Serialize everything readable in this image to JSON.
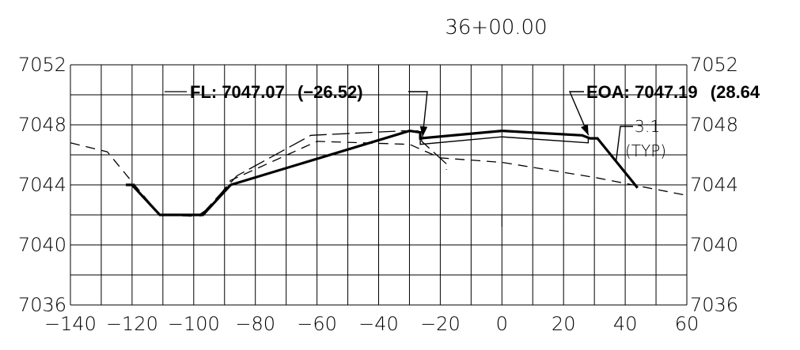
{
  "chart_data": {
    "type": "line",
    "title": "36+00.00",
    "xlim": [
      -140,
      60
    ],
    "ylim": [
      7036,
      7052
    ],
    "x_ticks": [
      "−140",
      "−120",
      "−100",
      "−80",
      "−60",
      "−40",
      "−20",
      "0",
      "20",
      "40",
      "60"
    ],
    "y_ticks_left": [
      "7052",
      "7048",
      "7044",
      "7040",
      "7036"
    ],
    "y_ticks_right": [
      "7052",
      "7048",
      "7044",
      "7040",
      "7036"
    ],
    "grid": true,
    "series": [
      {
        "style": "solid-heavy",
        "points": [
          [
            -122,
            7044
          ],
          [
            -120,
            7044
          ],
          [
            -111,
            7042
          ],
          [
            -97,
            7042
          ],
          [
            -88,
            7044
          ],
          [
            -30,
            7047.6
          ],
          [
            -26.5,
            7047.5
          ],
          [
            -26.5,
            7047.1
          ],
          [
            0,
            7047.6
          ],
          [
            26,
            7047.3
          ],
          [
            28.6,
            7047.1
          ],
          [
            31,
            7047.1
          ],
          [
            44,
            7043.8
          ]
        ]
      },
      {
        "style": "solid-thin",
        "points": [
          [
            -26.5,
            7047.05
          ],
          [
            -26.5,
            7046.7
          ],
          [
            0,
            7047.2
          ],
          [
            28,
            7046.8
          ],
          [
            28,
            7047.1
          ]
        ]
      },
      {
        "style": "dashed",
        "points": [
          [
            -140,
            7046.8
          ],
          [
            -128,
            7046.2
          ],
          [
            -120,
            7044.2
          ],
          [
            -111,
            7042.0
          ],
          [
            -99,
            7041.9
          ],
          [
            -94,
            7042.6
          ],
          [
            -88,
            7044.3
          ],
          [
            -60,
            7046.9
          ],
          [
            -30,
            7046.7
          ],
          [
            -20,
            7045.8
          ],
          [
            0,
            7045.5
          ],
          [
            30,
            7044.5
          ],
          [
            60,
            7043.3
          ]
        ]
      },
      {
        "style": "long-dash",
        "points": [
          [
            -98,
            7041.9
          ],
          [
            -86,
            7044.6
          ],
          [
            -62,
            7047.3
          ],
          [
            -32,
            7047.6
          ],
          [
            -26.5,
            7047.6
          ],
          [
            -26,
            7046.9
          ],
          [
            -18,
            7045.4
          ],
          [
            -18,
            7045.0
          ]
        ]
      }
    ],
    "annotations": [
      {
        "text": "FL: 7047.07",
        "offset": "(−26.52)",
        "target": [
          -26.5,
          7047.1
        ]
      },
      {
        "text": "EOA: 7047.19",
        "offset": "(28.64",
        "target": [
          28.6,
          7047.2
        ]
      },
      {
        "text": "3:1",
        "subtext": "(TYP)",
        "target": [
          37,
          7045.5
        ]
      }
    ]
  }
}
